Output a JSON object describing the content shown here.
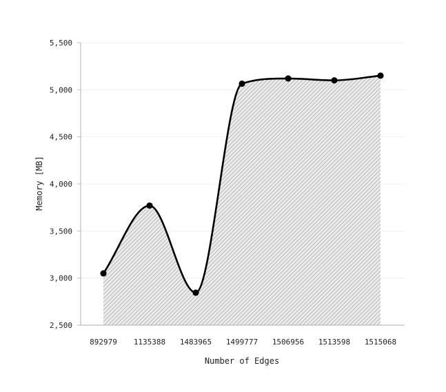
{
  "chart_data": {
    "type": "area",
    "title": "",
    "xlabel": "Number of Edges",
    "ylabel": "Memory [MB]",
    "categories": [
      "892979",
      "1135388",
      "1483965",
      "1499777",
      "1506956",
      "1513598",
      "1515068"
    ],
    "series": [
      {
        "values": [
          3050,
          3770,
          2845,
          5065,
          5120,
          5100,
          5150
        ]
      }
    ],
    "ylim": [
      2500,
      5500
    ],
    "yticks": [
      2500,
      3000,
      3500,
      4000,
      4500,
      5000,
      5500
    ],
    "ytick_labels": [
      "2,500",
      "3,000",
      "3,500",
      "4,000",
      "4,500",
      "5,000",
      "5,500"
    ],
    "grid": "horizontal",
    "legend": "none",
    "colors": {
      "line": "#000000",
      "fill_hatch": "#b8b8b8",
      "axis": "#bdbdbd",
      "grid": "#f0f0f0"
    }
  }
}
